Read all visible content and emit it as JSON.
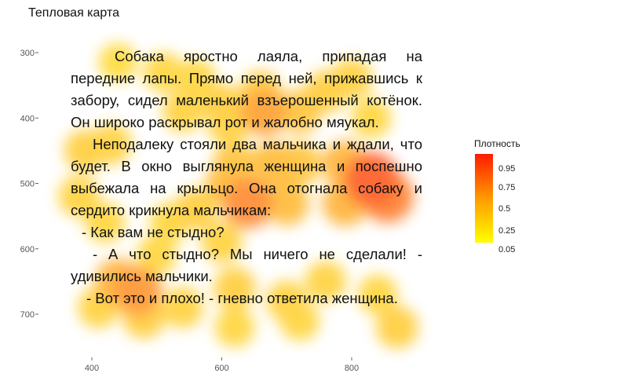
{
  "chart_data": {
    "type": "heatmap",
    "title": "Тепловая карта",
    "xlabel": "",
    "ylabel": "",
    "x_ticks": [
      400,
      600,
      800
    ],
    "y_ticks": [
      300,
      400,
      500,
      600,
      700
    ],
    "xlim": [
      354,
      920
    ],
    "ylim": [
      250,
      755
    ],
    "y_reversed": true,
    "legend": {
      "title": "Плотность",
      "position": "right",
      "ticks": [
        "0.95",
        "0.75",
        "0.5",
        "0.25",
        "0.05"
      ],
      "colors": [
        "#ff0000",
        "#ff8000",
        "#ffff00"
      ]
    },
    "density_points": [
      {
        "x": 440,
        "y": 315,
        "v": 0.15
      },
      {
        "x": 510,
        "y": 330,
        "v": 0.2
      },
      {
        "x": 560,
        "y": 340,
        "v": 0.2
      },
      {
        "x": 540,
        "y": 390,
        "v": 0.25
      },
      {
        "x": 600,
        "y": 380,
        "v": 0.3
      },
      {
        "x": 660,
        "y": 360,
        "v": 0.3
      },
      {
        "x": 665,
        "y": 390,
        "v": 0.55
      },
      {
        "x": 720,
        "y": 390,
        "v": 0.35
      },
      {
        "x": 760,
        "y": 360,
        "v": 0.3
      },
      {
        "x": 800,
        "y": 340,
        "v": 0.25
      },
      {
        "x": 830,
        "y": 400,
        "v": 0.2
      },
      {
        "x": 610,
        "y": 410,
        "v": 0.25
      },
      {
        "x": 430,
        "y": 440,
        "v": 0.25
      },
      {
        "x": 390,
        "y": 450,
        "v": 0.3
      },
      {
        "x": 620,
        "y": 470,
        "v": 0.35
      },
      {
        "x": 680,
        "y": 470,
        "v": 0.4
      },
      {
        "x": 720,
        "y": 470,
        "v": 0.35
      },
      {
        "x": 790,
        "y": 470,
        "v": 0.45
      },
      {
        "x": 830,
        "y": 495,
        "v": 0.85
      },
      {
        "x": 855,
        "y": 520,
        "v": 0.7
      },
      {
        "x": 790,
        "y": 530,
        "v": 0.45
      },
      {
        "x": 610,
        "y": 500,
        "v": 0.4
      },
      {
        "x": 640,
        "y": 530,
        "v": 0.65
      },
      {
        "x": 700,
        "y": 530,
        "v": 0.4
      },
      {
        "x": 560,
        "y": 540,
        "v": 0.3
      },
      {
        "x": 520,
        "y": 560,
        "v": 0.2
      },
      {
        "x": 420,
        "y": 560,
        "v": 0.2
      },
      {
        "x": 380,
        "y": 520,
        "v": 0.25
      },
      {
        "x": 500,
        "y": 610,
        "v": 0.2
      },
      {
        "x": 600,
        "y": 590,
        "v": 0.25
      },
      {
        "x": 440,
        "y": 650,
        "v": 0.45
      },
      {
        "x": 470,
        "y": 665,
        "v": 0.6
      },
      {
        "x": 480,
        "y": 705,
        "v": 0.3
      },
      {
        "x": 410,
        "y": 690,
        "v": 0.25
      },
      {
        "x": 540,
        "y": 690,
        "v": 0.25
      },
      {
        "x": 620,
        "y": 660,
        "v": 0.3
      },
      {
        "x": 700,
        "y": 680,
        "v": 0.25
      },
      {
        "x": 760,
        "y": 650,
        "v": 0.25
      },
      {
        "x": 840,
        "y": 670,
        "v": 0.2
      },
      {
        "x": 870,
        "y": 720,
        "v": 0.3
      },
      {
        "x": 720,
        "y": 710,
        "v": 0.2
      },
      {
        "x": 620,
        "y": 720,
        "v": 0.2
      }
    ]
  },
  "passage": [
    "Собака яростно лаяла, припадая на передние лапы. Прямо перед ней, прижавшись к забору, сидел маленький взъерошенный котёнок. Он широко раскрывал рот и жалобно мяукал.",
    "Неподалеку стояли два мальчика и ждали, что будет. В окно выглянула женщина и поспешно выбежала на крыльцо. Она отогнала собаку и сердито крикнула мальчикам:",
    "- Как вам не стыдно?",
    "- А что стыдно? Мы ничего не сделали! - удивились мальчики.",
    "- Вот это и плохо! - гневно ответила женщина."
  ]
}
